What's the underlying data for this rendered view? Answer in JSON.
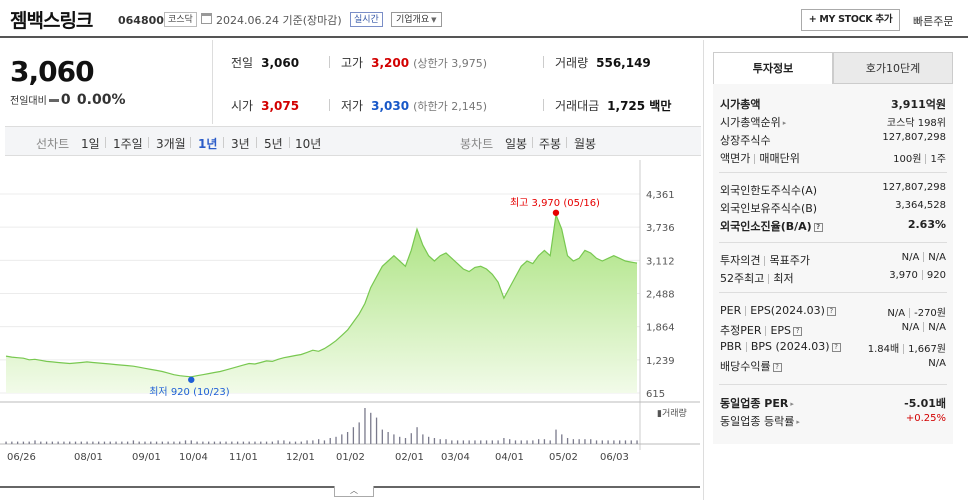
{
  "header": {
    "stock_name": "젬백스링크",
    "stock_code": "064800",
    "market": "코스닥",
    "date_text": "2024.06.24 기준(장마감)",
    "realtime": "실시간",
    "overview": "기업개요",
    "mystock": "+ MY STOCK 추가",
    "quick_order": "빠른주문"
  },
  "price": {
    "current": "3,060",
    "change_label": "전일대비",
    "change_value": "0",
    "change_pct": "0.00%"
  },
  "stats": {
    "prev_label": "전일",
    "prev": "3,060",
    "high_label": "고가",
    "high": "3,200",
    "upper_limit": "(상한가 3,975)",
    "volume_label": "거래량",
    "volume": "556,149",
    "open_label": "시가",
    "open": "3,075",
    "low_label": "저가",
    "low": "3,030",
    "lower_limit": "(하한가 2,145)",
    "amount_label": "거래대금",
    "amount": "1,725 백만"
  },
  "toolbar": {
    "line_chart": "선차트",
    "periods": [
      "1일",
      "1주일",
      "3개월",
      "1년",
      "3년",
      "5년",
      "10년"
    ],
    "active_period": "1년",
    "candle_chart": "봉차트",
    "candles": [
      "일봉",
      "주봉",
      "월봉"
    ]
  },
  "chart_data": {
    "type": "area",
    "y_ticks": [
      "4,361",
      "3,736",
      "3,112",
      "2,488",
      "1,864",
      "1,239",
      "615"
    ],
    "ylim": [
      615,
      4361
    ],
    "x_ticks": [
      "06/26",
      "08/01",
      "09/01",
      "10/04",
      "11/01",
      "12/01",
      "01/02",
      "02/01",
      "03/04",
      "04/01",
      "05/02",
      "06/03"
    ],
    "high_annotation": "최고 3,970 (05/16)",
    "low_annotation": "최저 920 (10/23)",
    "volume_label": "거래량",
    "colors": {
      "fill": "#c8ecb0",
      "line": "#78c850",
      "high": "#e60000",
      "low": "#1f5fd6",
      "volume": "#7a7a8c"
    },
    "series": [
      {
        "values": [
          1310,
          1290,
          1280,
          1270,
          1240,
          1250,
          1230,
          1210,
          1200,
          1190,
          1180,
          1170,
          1180,
          1190,
          1200,
          1190,
          1180,
          1170,
          1160,
          1150,
          1140,
          1130,
          1120,
          1100,
          1080,
          1060,
          1040,
          1020,
          990,
          960,
          940,
          930,
          920,
          940,
          960,
          980,
          1000,
          1020,
          1050,
          1080,
          1110,
          1140,
          1170,
          1160,
          1190,
          1220,
          1210,
          1250,
          1280,
          1300,
          1320,
          1340,
          1380,
          1420,
          1400,
          1450,
          1520,
          1600,
          1700,
          1800,
          1950,
          2100,
          2300,
          2600,
          2800,
          3000,
          3100,
          3200,
          3100,
          3000,
          3300,
          3700,
          3400,
          3200,
          3100,
          3200,
          3250,
          3150,
          3050,
          2950,
          2900,
          2980,
          3000,
          2950,
          2850,
          2700,
          2400,
          2600,
          2800,
          3000,
          3100,
          3050,
          3200,
          3300,
          3200,
          3970,
          3700,
          3200,
          3100,
          3150,
          3300,
          3250,
          3150,
          3100,
          3150,
          3200,
          3150,
          3100,
          3080,
          3060
        ]
      }
    ],
    "volume": [
      2,
      2,
      2,
      2,
      2,
      3,
      2,
      2,
      2,
      2,
      2,
      2,
      2,
      2,
      2,
      2,
      2,
      2,
      2,
      2,
      2,
      2,
      3,
      2,
      2,
      2,
      2,
      2,
      2,
      2,
      2,
      3,
      3,
      2,
      2,
      2,
      2,
      2,
      2,
      2,
      2,
      2,
      2,
      2,
      2,
      2,
      2,
      3,
      3,
      2,
      2,
      2,
      3,
      3,
      4,
      3,
      5,
      6,
      8,
      10,
      14,
      18,
      30,
      26,
      22,
      12,
      10,
      8,
      6,
      5,
      9,
      14,
      8,
      6,
      5,
      4,
      4,
      3,
      3,
      3,
      3,
      3,
      3,
      3,
      3,
      3,
      5,
      4,
      3,
      3,
      3,
      3,
      4,
      4,
      3,
      12,
      8,
      5,
      4,
      4,
      4,
      4,
      3,
      3,
      3,
      3,
      3,
      3,
      3,
      3
    ]
  },
  "panel": {
    "tab_invest": "투자정보",
    "tab_quote": "호가10단계",
    "rows": [
      {
        "k": "시가총액",
        "v": "3,911억원",
        "kb": true,
        "vb": true
      },
      {
        "k": "시가총액순위",
        "v": "코스닥 198위",
        "tri": true
      },
      {
        "k": "상장주식수",
        "v": "127,807,298"
      },
      {
        "k1": "액면가",
        "k2": "매매단위",
        "v1": "100원",
        "v2": "1주"
      },
      {
        "k": "외국인한도주식수(A)",
        "v": "127,807,298"
      },
      {
        "k": "외국인보유주식수(B)",
        "v": "3,364,528"
      },
      {
        "k": "외국인소진율(B/A)",
        "v": "2.63%",
        "kb": true,
        "vb": true,
        "q": true
      },
      {
        "k1": "투자의견",
        "k2": "목표주가",
        "v1": "N/A",
        "v2": "N/A"
      },
      {
        "k1": "52주최고",
        "k2": "최저",
        "v1": "3,970",
        "v2": "920"
      },
      {
        "k1": "PER",
        "k2": "EPS(2024.03)",
        "v1": "N/A",
        "v2": "-270원",
        "q": true
      },
      {
        "k1": "추정PER",
        "k2": "EPS",
        "v1": "N/A",
        "v2": "N/A",
        "q": true
      },
      {
        "k1": "PBR",
        "k2": "BPS (2024.03)",
        "v1": "1.84배",
        "v2": "1,667원",
        "q": true
      },
      {
        "k": "배당수익률",
        "v": "N/A",
        "q": true
      },
      {
        "k": "동일업종 PER",
        "v": "-5.01배",
        "kb": true,
        "vb": true,
        "tri": true
      },
      {
        "k": "동일업종 등락률",
        "v": "+0.25%",
        "red": true,
        "tri": true
      }
    ]
  }
}
